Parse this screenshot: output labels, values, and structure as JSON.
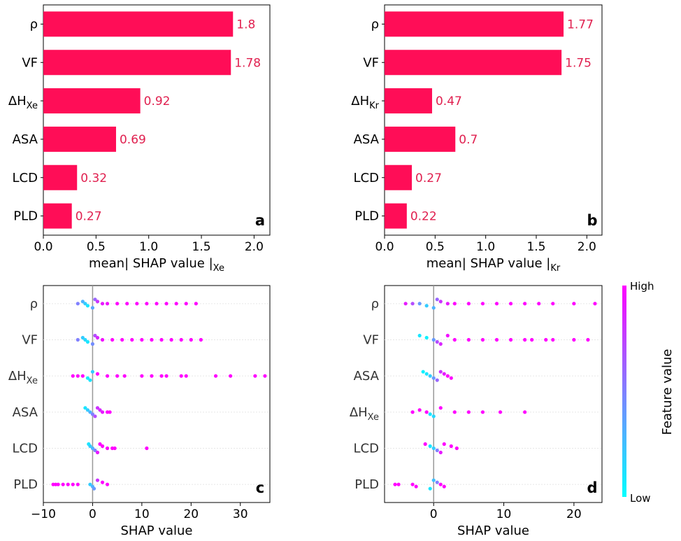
{
  "chart_data": [
    {
      "type": "bar",
      "orientation": "horizontal",
      "panel_label": "a",
      "categories": [
        {
          "main": "ρ",
          "sub": ""
        },
        {
          "main": "VF",
          "sub": ""
        },
        {
          "main": "ΔH",
          "sub": "Xe"
        },
        {
          "main": "ASA",
          "sub": ""
        },
        {
          "main": "LCD",
          "sub": ""
        },
        {
          "main": "PLD",
          "sub": ""
        }
      ],
      "values": [
        1.8,
        1.78,
        0.92,
        0.69,
        0.32,
        0.27
      ],
      "value_labels": [
        "1.8",
        "1.78",
        "0.92",
        "0.69",
        "0.32",
        "0.27"
      ],
      "xlabel": {
        "main": "mean| SHAP value |",
        "sub": "Xe"
      },
      "xlim": [
        0,
        2.15
      ],
      "xticks": [
        "0.0",
        "0.5",
        "1.0",
        "1.5",
        "2.0"
      ],
      "bar_color": "#ff0d57",
      "label_color": "#e0204f"
    },
    {
      "type": "bar",
      "orientation": "horizontal",
      "panel_label": "b",
      "categories": [
        {
          "main": "ρ",
          "sub": ""
        },
        {
          "main": "VF",
          "sub": ""
        },
        {
          "main": "ΔH",
          "sub": "Kr"
        },
        {
          "main": "ASA",
          "sub": ""
        },
        {
          "main": "LCD",
          "sub": ""
        },
        {
          "main": "PLD",
          "sub": ""
        }
      ],
      "values": [
        1.77,
        1.75,
        0.47,
        0.7,
        0.27,
        0.22
      ],
      "value_labels": [
        "1.77",
        "1.75",
        "0.47",
        "0.7",
        "0.27",
        "0.22"
      ],
      "xlabel": {
        "main": "mean| SHAP value |",
        "sub": "Kr"
      },
      "xlim": [
        0,
        2.15
      ],
      "xticks": [
        "0.0",
        "0.5",
        "1.0",
        "1.5",
        "2.0"
      ],
      "bar_color": "#ff0d57",
      "label_color": "#e0204f"
    },
    {
      "type": "scatter",
      "subtype": "beeswarm",
      "panel_label": "c",
      "categories": [
        {
          "main": "ρ",
          "sub": ""
        },
        {
          "main": "VF",
          "sub": ""
        },
        {
          "main": "ΔH",
          "sub": "Xe"
        },
        {
          "main": "ASA",
          "sub": ""
        },
        {
          "main": "LCD",
          "sub": ""
        },
        {
          "main": "PLD",
          "sub": ""
        }
      ],
      "series": [
        {
          "points": [
            [
              -3,
              0.5
            ],
            [
              -2,
              0.3
            ],
            [
              -1.5,
              0.2
            ],
            [
              -1,
              0.1
            ],
            [
              0,
              0.35
            ],
            [
              0.5,
              0.6
            ],
            [
              1,
              0.8
            ],
            [
              2,
              0.9
            ],
            [
              3,
              0.95
            ],
            [
              5,
              1
            ],
            [
              7,
              1
            ],
            [
              9,
              1
            ],
            [
              11,
              1
            ],
            [
              13,
              1
            ],
            [
              15,
              1
            ],
            [
              17,
              1
            ],
            [
              19,
              1
            ],
            [
              21,
              1
            ]
          ]
        },
        {
          "points": [
            [
              -3,
              0.5
            ],
            [
              -2,
              0.2
            ],
            [
              -1.5,
              0.15
            ],
            [
              -1,
              0.1
            ],
            [
              0,
              0.45
            ],
            [
              0.5,
              0.7
            ],
            [
              1,
              0.85
            ],
            [
              2,
              0.95
            ],
            [
              4,
              1
            ],
            [
              6,
              1
            ],
            [
              8,
              1
            ],
            [
              10,
              1
            ],
            [
              12,
              1
            ],
            [
              14,
              1
            ],
            [
              16,
              1
            ],
            [
              18,
              1
            ],
            [
              20,
              1
            ],
            [
              22,
              1
            ]
          ]
        },
        {
          "points": [
            [
              -4,
              1
            ],
            [
              -3,
              1
            ],
            [
              -2,
              1
            ],
            [
              -1,
              0.05
            ],
            [
              -0.5,
              0.1
            ],
            [
              0,
              0.2
            ],
            [
              1,
              1
            ],
            [
              3,
              1
            ],
            [
              5,
              1
            ],
            [
              6.5,
              1
            ],
            [
              10,
              1
            ],
            [
              12,
              1
            ],
            [
              14,
              1
            ],
            [
              15,
              1
            ],
            [
              18,
              1
            ],
            [
              19,
              1
            ],
            [
              25,
              1
            ],
            [
              28,
              1
            ],
            [
              33,
              1
            ],
            [
              35,
              1
            ]
          ]
        },
        {
          "points": [
            [
              -1.5,
              0.1
            ],
            [
              -1,
              0.2
            ],
            [
              -0.5,
              0.3
            ],
            [
              0,
              0.5
            ],
            [
              0.5,
              0.7
            ],
            [
              1,
              0.8
            ],
            [
              1.5,
              0.85
            ],
            [
              2,
              0.9
            ],
            [
              3,
              1
            ],
            [
              3.5,
              1
            ]
          ]
        },
        {
          "points": [
            [
              -0.8,
              0.1
            ],
            [
              -0.5,
              0.2
            ],
            [
              0,
              0.3
            ],
            [
              0.5,
              0.5
            ],
            [
              1,
              0.9
            ],
            [
              1.5,
              1
            ],
            [
              2,
              1
            ],
            [
              3,
              1
            ],
            [
              4,
              1
            ],
            [
              4.5,
              1
            ],
            [
              11,
              1
            ]
          ]
        },
        {
          "points": [
            [
              -8,
              1
            ],
            [
              -7.5,
              1
            ],
            [
              -7,
              1
            ],
            [
              -6,
              1
            ],
            [
              -5,
              1
            ],
            [
              -4,
              1
            ],
            [
              -3,
              1
            ],
            [
              -0.5,
              0.2
            ],
            [
              0,
              0.3
            ],
            [
              0.3,
              0.4
            ],
            [
              1,
              0.8
            ],
            [
              2,
              1
            ],
            [
              3,
              1
            ]
          ]
        }
      ],
      "xlabel": "SHAP value",
      "xlim": [
        -10,
        36
      ],
      "xticks": [
        "−10",
        "0",
        "10",
        "20",
        "30"
      ]
    },
    {
      "type": "scatter",
      "subtype": "beeswarm",
      "panel_label": "d",
      "categories": [
        {
          "main": "ρ",
          "sub": ""
        },
        {
          "main": "VF",
          "sub": ""
        },
        {
          "main": "ASA",
          "sub": ""
        },
        {
          "main": "ΔH",
          "sub": "Xe"
        },
        {
          "main": "LCD",
          "sub": ""
        },
        {
          "main": "PLD",
          "sub": ""
        }
      ],
      "series": [
        {
          "points": [
            [
              -4,
              0.9
            ],
            [
              -3,
              0.7
            ],
            [
              -2,
              0.4
            ],
            [
              -1,
              0.2
            ],
            [
              0,
              0.3
            ],
            [
              0.5,
              0.6
            ],
            [
              1,
              0.8
            ],
            [
              2,
              0.9
            ],
            [
              3,
              1
            ],
            [
              5,
              1
            ],
            [
              7,
              1
            ],
            [
              9,
              1
            ],
            [
              11,
              1
            ],
            [
              13,
              1
            ],
            [
              15,
              1
            ],
            [
              17,
              1
            ],
            [
              20,
              1
            ],
            [
              23,
              1
            ]
          ]
        },
        {
          "points": [
            [
              -2,
              0.1
            ],
            [
              -1,
              0.05
            ],
            [
              0,
              0.4
            ],
            [
              0.5,
              0.7
            ],
            [
              1,
              0.85
            ],
            [
              2,
              0.95
            ],
            [
              3,
              1
            ],
            [
              5,
              1
            ],
            [
              7,
              1
            ],
            [
              9,
              1
            ],
            [
              11,
              1
            ],
            [
              13,
              1
            ],
            [
              14,
              1
            ],
            [
              16,
              1
            ],
            [
              17,
              1
            ],
            [
              20,
              1
            ],
            [
              22,
              1
            ]
          ]
        },
        {
          "points": [
            [
              -1.5,
              0.05
            ],
            [
              -1,
              0.1
            ],
            [
              -0.5,
              0.2
            ],
            [
              0,
              0.4
            ],
            [
              0.5,
              0.6
            ],
            [
              1,
              0.8
            ],
            [
              1.5,
              0.9
            ],
            [
              2,
              1
            ],
            [
              2.5,
              1
            ]
          ]
        },
        {
          "points": [
            [
              -3,
              1
            ],
            [
              -2,
              1
            ],
            [
              -1,
              1
            ],
            [
              -0.5,
              0.1
            ],
            [
              0,
              0.15
            ],
            [
              1,
              1
            ],
            [
              3,
              1
            ],
            [
              5,
              1
            ],
            [
              7,
              1
            ],
            [
              9.5,
              1
            ],
            [
              13,
              1
            ]
          ]
        },
        {
          "points": [
            [
              -1.2,
              1
            ],
            [
              -0.5,
              0.1
            ],
            [
              0,
              0.2
            ],
            [
              0.5,
              0.5
            ],
            [
              1,
              0.9
            ],
            [
              1.5,
              1
            ],
            [
              2.5,
              1
            ],
            [
              3.3,
              1
            ]
          ]
        },
        {
          "points": [
            [
              -5.5,
              1
            ],
            [
              -5,
              1
            ],
            [
              -3,
              1
            ],
            [
              -2.5,
              1
            ],
            [
              -0.5,
              0.1
            ],
            [
              0,
              0.25
            ],
            [
              0.5,
              0.5
            ],
            [
              1,
              1
            ],
            [
              1.5,
              1
            ]
          ]
        }
      ],
      "xlabel": "SHAP value",
      "xlim": [
        -7,
        24
      ],
      "xticks": [
        "0",
        "10",
        "20"
      ],
      "colorbar": {
        "title": "Feature value",
        "high_label": "High",
        "low_label": "Low",
        "high_color": "#ff00ff",
        "low_color": "#00ffff"
      }
    }
  ]
}
